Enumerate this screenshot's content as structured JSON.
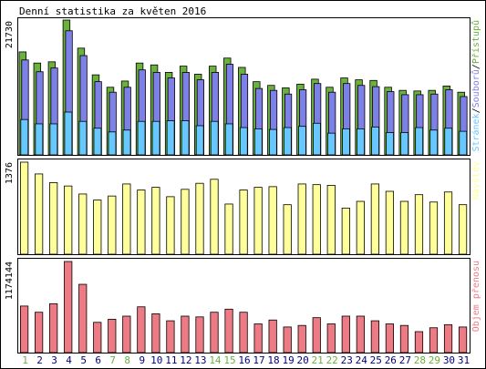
{
  "title": "Denní statistika za květen 2016",
  "colors": {
    "background": "#ffffff",
    "frame": "#000000",
    "hits": "#6ab13d",
    "files": "#7f7fe8",
    "pages": "#66c8ff",
    "visits": "#ffff99",
    "kbytes": "#ee7a84",
    "weekend_label": "#6ab13d",
    "weekday_label": "#000080",
    "legend_separator": "#000000"
  },
  "chart_data": [
    {
      "type": "bar",
      "panel": "hits-files-pages",
      "ymax_label": "21730",
      "ylim": [
        0,
        21730
      ],
      "categories": [
        "1",
        "2",
        "3",
        "4",
        "5",
        "6",
        "7",
        "8",
        "9",
        "10",
        "11",
        "12",
        "13",
        "14",
        "15",
        "16",
        "17",
        "18",
        "19",
        "20",
        "21",
        "22",
        "23",
        "24",
        "25",
        "26",
        "27",
        "28",
        "29",
        "30",
        "31"
      ],
      "weekend_days": [
        "1",
        "7",
        "8",
        "14",
        "15",
        "21",
        "22",
        "28",
        "29"
      ],
      "legend": [
        {
          "text": "Stránek",
          "color_key": "pages"
        },
        {
          "text": "Souborů",
          "color_key": "files"
        },
        {
          "text": "Přístupů",
          "color_key": "hits"
        }
      ],
      "series": [
        {
          "name": "Přístupů",
          "color_key": "hits",
          "values": [
            16600,
            14800,
            15000,
            21730,
            17200,
            12900,
            10900,
            11900,
            14800,
            14500,
            13300,
            14300,
            13000,
            14300,
            15600,
            14100,
            11800,
            11200,
            10800,
            11400,
            12200,
            10900,
            12400,
            12100,
            12000,
            10900,
            10400,
            10300,
            10400,
            11100,
            10100
          ]
        },
        {
          "name": "Souborů",
          "color_key": "files",
          "values": [
            15300,
            13400,
            14000,
            20000,
            16000,
            11800,
            10100,
            10900,
            13700,
            13300,
            12400,
            13300,
            12100,
            13300,
            14600,
            13000,
            10700,
            10400,
            9800,
            10500,
            11500,
            10100,
            11500,
            11200,
            11000,
            10200,
            9700,
            9700,
            9800,
            10500,
            9400
          ]
        },
        {
          "name": "Stránek",
          "color_key": "pages",
          "values": [
            5700,
            5000,
            5000,
            6900,
            5400,
            4300,
            3700,
            4000,
            5400,
            5400,
            5500,
            5500,
            4700,
            5400,
            5000,
            4400,
            4200,
            4100,
            4400,
            4600,
            5100,
            3500,
            4200,
            4200,
            4500,
            3600,
            3600,
            4400,
            4000,
            4300,
            3800
          ]
        }
      ]
    },
    {
      "type": "bar",
      "panel": "visits",
      "ymax_label": "1376",
      "ylim": [
        0,
        1376
      ],
      "categories": [
        "1",
        "2",
        "3",
        "4",
        "5",
        "6",
        "7",
        "8",
        "9",
        "10",
        "11",
        "12",
        "13",
        "14",
        "15",
        "16",
        "17",
        "18",
        "19",
        "20",
        "21",
        "22",
        "23",
        "24",
        "25",
        "26",
        "27",
        "28",
        "29",
        "30",
        "31"
      ],
      "legend": [
        {
          "text": "Návštěv",
          "color_key": "visits"
        }
      ],
      "series": [
        {
          "name": "Návštěv",
          "color_key": "visits",
          "values": [
            1376,
            1200,
            1070,
            1020,
            900,
            810,
            870,
            1050,
            960,
            1000,
            860,
            970,
            1060,
            1120,
            750,
            960,
            1000,
            1010,
            740,
            1050,
            1040,
            1030,
            690,
            790,
            1050,
            940,
            790,
            890,
            780,
            930,
            740
          ]
        }
      ]
    },
    {
      "type": "bar",
      "panel": "kbytes",
      "ymax_label": "1174144",
      "ylim": [
        0,
        1174144
      ],
      "categories": [
        "1",
        "2",
        "3",
        "4",
        "5",
        "6",
        "7",
        "8",
        "9",
        "10",
        "11",
        "12",
        "13",
        "14",
        "15",
        "16",
        "17",
        "18",
        "19",
        "20",
        "21",
        "22",
        "23",
        "24",
        "25",
        "26",
        "27",
        "28",
        "29",
        "30",
        "31"
      ],
      "legend": [
        {
          "text": "Objem přenosu",
          "color_key": "kbytes"
        }
      ],
      "series": [
        {
          "name": "Objem přenosu",
          "color_key": "kbytes",
          "values": [
            600000,
            520000,
            630000,
            1174144,
            880000,
            390000,
            430000,
            470000,
            590000,
            500000,
            410000,
            470000,
            460000,
            520000,
            560000,
            520000,
            370000,
            420000,
            330000,
            350000,
            450000,
            370000,
            470000,
            470000,
            410000,
            370000,
            350000,
            270000,
            320000,
            360000,
            330000
          ]
        }
      ]
    }
  ]
}
